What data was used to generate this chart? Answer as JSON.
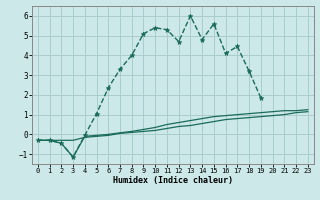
{
  "xlabel": "Humidex (Indice chaleur)",
  "background_color": "#cce8e8",
  "grid_color": "#aacccc",
  "line_color": "#1a6b5a",
  "x_values": [
    0,
    1,
    2,
    3,
    4,
    5,
    6,
    7,
    8,
    9,
    10,
    11,
    12,
    13,
    14,
    15,
    16,
    17,
    18,
    19,
    20,
    21,
    22,
    23
  ],
  "series1": [
    -0.3,
    -0.3,
    -0.3,
    -0.3,
    -0.15,
    -0.1,
    -0.05,
    0.05,
    0.1,
    0.15,
    0.2,
    0.3,
    0.4,
    0.45,
    0.55,
    0.65,
    0.75,
    0.8,
    0.85,
    0.9,
    0.95,
    1.0,
    1.1,
    1.15
  ],
  "series2": [
    -0.3,
    -0.3,
    -0.45,
    -1.15,
    -0.1,
    -0.05,
    0.0,
    0.08,
    0.15,
    0.25,
    0.35,
    0.5,
    0.6,
    0.7,
    0.8,
    0.9,
    0.95,
    1.0,
    1.05,
    1.1,
    1.15,
    1.2,
    1.2,
    1.25
  ],
  "series3": [
    -0.3,
    -0.3,
    -0.45,
    -1.15,
    -0.05,
    1.05,
    2.35,
    3.3,
    4.0,
    5.1,
    5.4,
    5.3,
    4.7,
    6.0,
    4.8,
    5.6,
    4.1,
    4.45,
    3.2,
    1.85,
    null,
    null,
    null,
    null
  ],
  "ylim": [
    -1.5,
    6.5
  ],
  "xlim": [
    -0.5,
    23.5
  ],
  "yticks": [
    -1,
    0,
    1,
    2,
    3,
    4,
    5,
    6
  ],
  "xticks": [
    0,
    1,
    2,
    3,
    4,
    5,
    6,
    7,
    8,
    9,
    10,
    11,
    12,
    13,
    14,
    15,
    16,
    17,
    18,
    19,
    20,
    21,
    22,
    23
  ]
}
